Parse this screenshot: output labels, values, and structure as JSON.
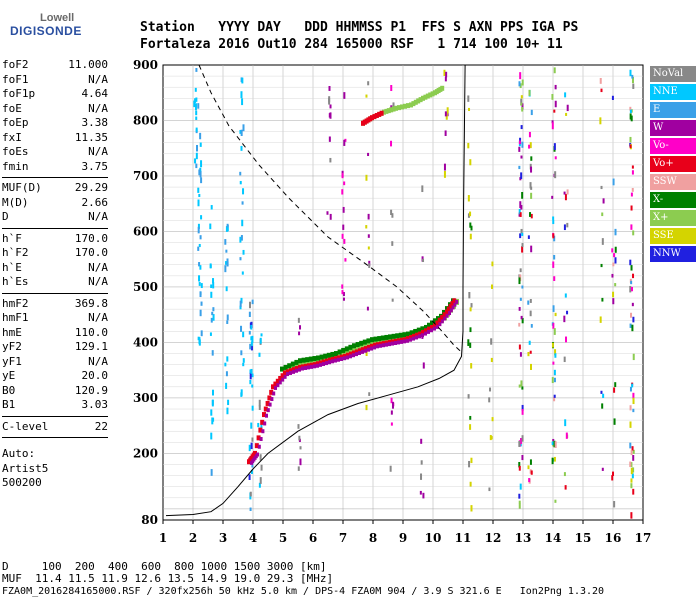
{
  "logo": {
    "top": "Lowell",
    "main": "DIGISONDE"
  },
  "header": {
    "line1": "Station   YYYY DAY   DDD HHMMSS P1  FFS S AXN PPS IGA PS",
    "line2": "Fortaleza 2016 Out10 284 165000 RSF   1 714 100 10+ 11"
  },
  "params_groups": [
    [
      {
        "k": "foF2",
        "v": "11.000"
      },
      {
        "k": "foF1",
        "v": "N/A"
      },
      {
        "k": "foF1p",
        "v": "4.64"
      },
      {
        "k": "foE",
        "v": "N/A"
      },
      {
        "k": "foEp",
        "v": "3.38"
      },
      {
        "k": "fxI",
        "v": "11.35"
      },
      {
        "k": "foEs",
        "v": "N/A"
      },
      {
        "k": "fmin",
        "v": "3.75"
      }
    ],
    [
      {
        "k": "MUF(D)",
        "v": "29.29"
      },
      {
        "k": "M(D)",
        "v": "2.66"
      },
      {
        "k": "D",
        "v": "N/A"
      }
    ],
    [
      {
        "k": "h`F",
        "v": "170.0"
      },
      {
        "k": "h`F2",
        "v": "170.0"
      },
      {
        "k": "h`E",
        "v": "N/A"
      },
      {
        "k": "h`Es",
        "v": "N/A"
      }
    ],
    [
      {
        "k": "hmF2",
        "v": "369.8"
      },
      {
        "k": "hmF1",
        "v": "N/A"
      },
      {
        "k": "hmE",
        "v": "110.0"
      },
      {
        "k": "yF2",
        "v": "129.1"
      },
      {
        "k": "yF1",
        "v": "N/A"
      },
      {
        "k": "yE",
        "v": "20.0"
      },
      {
        "k": "B0",
        "v": "120.9"
      },
      {
        "k": "B1",
        "v": "3.03"
      }
    ],
    [
      {
        "k": "C-level",
        "v": "22"
      }
    ]
  ],
  "auto": [
    "Auto:",
    "Artist5",
    "500200"
  ],
  "bottom": {
    "d_line": "D     100  200  400  600  800 1000 1500 3000 [km]",
    "muf_line": "MUF  11.4 11.5 11.9 12.6 13.5 14.9 19.0 29.3 [MHz]",
    "footer": "FZA0M_2016284165000.RSF / 320fx256h 50 kHz 5.0 km / DPS-4 FZA0M 904 / 3.9 S 321.6 E   Ion2Png 1.3.20"
  },
  "legend": [
    {
      "label": "NoVal",
      "color": "#888888"
    },
    {
      "label": "NNE",
      "color": "#00c8ff"
    },
    {
      "label": "E",
      "color": "#3aa0e8"
    },
    {
      "label": "W",
      "color": "#a000a0"
    },
    {
      "label": "Vo-",
      "color": "#ff00c8"
    },
    {
      "label": "Vo+",
      "color": "#e8001a"
    },
    {
      "label": "SSW",
      "color": "#f0a0a0"
    },
    {
      "label": "X-",
      "color": "#008000"
    },
    {
      "label": "X+",
      "color": "#8ccc50"
    },
    {
      "label": "SSE",
      "color": "#d4d400"
    },
    {
      "label": "NNW",
      "color": "#2020e0"
    }
  ],
  "chart_data": {
    "type": "scatter",
    "xlabel": "",
    "ylabel": "",
    "xlim": [
      1,
      17
    ],
    "ylim": [
      80,
      900
    ],
    "x_ticks": [
      "1",
      "2",
      "3",
      "4",
      "5",
      "6",
      "7",
      "8",
      "9",
      "10",
      "11",
      "12",
      "13",
      "14",
      "15",
      "16",
      "17"
    ],
    "y_ticks": [
      "80",
      "200",
      "300",
      "400",
      "500",
      "600",
      "700",
      "800",
      "900"
    ],
    "grid": true,
    "o_trace": [
      [
        3.8,
        185
      ],
      [
        4.0,
        200
      ],
      [
        4.3,
        270
      ],
      [
        4.6,
        320
      ],
      [
        5.0,
        345
      ],
      [
        5.5,
        355
      ],
      [
        6.0,
        360
      ],
      [
        6.5,
        368
      ],
      [
        7.0,
        375
      ],
      [
        7.5,
        385
      ],
      [
        8.0,
        395
      ],
      [
        8.5,
        400
      ],
      [
        9.0,
        405
      ],
      [
        9.5,
        415
      ],
      [
        10.0,
        430
      ],
      [
        10.4,
        455
      ],
      [
        10.7,
        480
      ]
    ],
    "x_trace": [
      [
        5.0,
        350
      ],
      [
        5.6,
        365
      ],
      [
        6.2,
        370
      ],
      [
        6.8,
        378
      ],
      [
        7.4,
        392
      ],
      [
        8.0,
        403
      ],
      [
        8.6,
        408
      ],
      [
        9.2,
        413
      ],
      [
        9.8,
        425
      ],
      [
        10.3,
        445
      ],
      [
        10.8,
        480
      ]
    ],
    "upper_trace": [
      [
        7.6,
        795
      ],
      [
        7.9,
        805
      ],
      [
        8.3,
        815
      ],
      [
        8.7,
        822
      ],
      [
        9.2,
        828
      ],
      [
        9.6,
        840
      ],
      [
        10.0,
        850
      ],
      [
        10.3,
        860
      ]
    ],
    "profile_solid": [
      [
        1.1,
        88
      ],
      [
        2.0,
        90
      ],
      [
        2.6,
        95
      ],
      [
        3.0,
        110
      ],
      [
        3.5,
        140
      ],
      [
        4.0,
        172
      ],
      [
        4.5,
        200
      ],
      [
        5.5,
        240
      ],
      [
        6.5,
        270
      ],
      [
        7.5,
        290
      ],
      [
        8.5,
        305
      ],
      [
        9.5,
        320
      ],
      [
        10.2,
        335
      ],
      [
        10.7,
        350
      ],
      [
        10.95,
        375
      ],
      [
        11.0,
        420
      ],
      [
        11.0,
        500
      ],
      [
        11.02,
        650
      ],
      [
        11.05,
        800
      ],
      [
        11.07,
        900
      ]
    ],
    "profile_dashed": [
      [
        2.2,
        900
      ],
      [
        2.6,
        850
      ],
      [
        3.2,
        790
      ],
      [
        4.2,
        720
      ],
      [
        5.2,
        660
      ],
      [
        6.5,
        590
      ],
      [
        7.8,
        540
      ],
      [
        8.8,
        500
      ],
      [
        9.7,
        455
      ],
      [
        10.3,
        420
      ],
      [
        10.7,
        395
      ],
      [
        11.0,
        380
      ]
    ]
  }
}
